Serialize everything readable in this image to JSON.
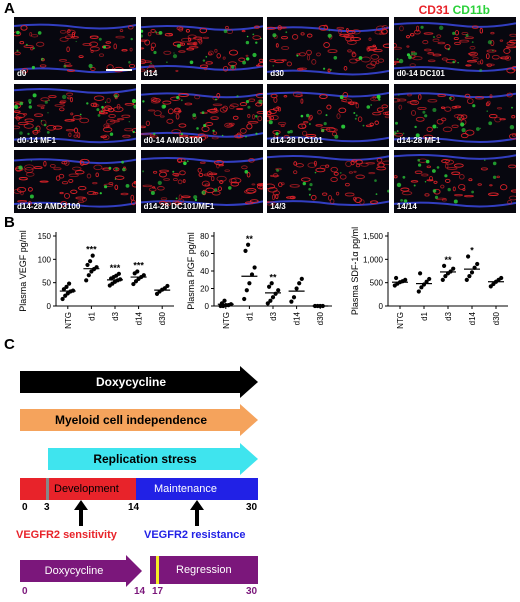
{
  "panel_labels": {
    "a": "A",
    "b": "B",
    "c": "C"
  },
  "legend": {
    "cd31": "CD31",
    "cd11b": "CD11b"
  },
  "panel_a": {
    "tiles": [
      "d0",
      "d14",
      "d30",
      "d0-14 DC101",
      "d0-14 MF1",
      "d0-14 AMD3100",
      "d14-28 DC101",
      "d14-28 MF1",
      "d14-28 AMD3100",
      "d14-28 DC101/MF1",
      "14/3",
      "14/14"
    ],
    "colors": {
      "cd31": "#e8232a",
      "cd11b": "#2bd13a",
      "dapi": "#3a48e0"
    }
  },
  "chart_data": [
    {
      "type": "scatter",
      "ylabel": "Plasma VEGF pg/ml",
      "categories": [
        "NTG",
        "d1",
        "d3",
        "d14",
        "d30"
      ],
      "ylim": [
        0,
        150
      ],
      "yticks": [
        0,
        50,
        100,
        150
      ],
      "means": [
        32,
        80,
        56,
        62,
        34
      ],
      "significance": [
        "",
        "***",
        "***",
        "***",
        ""
      ],
      "points": [
        [
          15,
          22,
          27,
          31,
          33,
          36,
          41,
          48
        ],
        [
          55,
          66,
          74,
          79,
          83,
          88,
          96,
          108
        ],
        [
          44,
          48,
          52,
          55,
          57,
          59,
          62,
          65,
          69
        ],
        [
          47,
          53,
          58,
          62,
          66,
          70,
          74
        ],
        [
          26,
          31,
          35,
          38,
          43
        ]
      ]
    },
    {
      "type": "scatter",
      "ylabel": "Plasma PlGF pg/ml",
      "categories": [
        "NTG",
        "d1",
        "d3",
        "d14",
        "d30"
      ],
      "ylim": [
        0,
        80
      ],
      "yticks": [
        0,
        20,
        40,
        60,
        80
      ],
      "means": [
        2,
        34,
        15,
        17,
        0
      ],
      "significance": [
        "",
        "**",
        "**",
        "",
        ""
      ],
      "points": [
        [
          0,
          0,
          1,
          1,
          2,
          3,
          6
        ],
        [
          8,
          18,
          26,
          36,
          44,
          63,
          70
        ],
        [
          3,
          6,
          10,
          14,
          18,
          22,
          26
        ],
        [
          5,
          10,
          20,
          26,
          31
        ],
        [
          0,
          0,
          0,
          0
        ]
      ]
    },
    {
      "type": "scatter",
      "ylabel": "Plasma SDF-1α pg/ml",
      "categories": [
        "NTG",
        "d1",
        "d3",
        "d14",
        "d30"
      ],
      "ylim": [
        0,
        1500
      ],
      "yticks": [
        0,
        500,
        1000,
        1500
      ],
      "ytick_labels": [
        "0",
        "500",
        "1,000",
        "1,500"
      ],
      "means": [
        510,
        480,
        730,
        790,
        520
      ],
      "significance": [
        "",
        "",
        "**",
        "*",
        ""
      ],
      "points": [
        [
          440,
          480,
          510,
          530,
          560,
          600
        ],
        [
          310,
          400,
          460,
          520,
          580,
          700
        ],
        [
          560,
          640,
          700,
          740,
          800,
          860
        ],
        [
          560,
          640,
          720,
          820,
          900,
          1060
        ],
        [
          420,
          470,
          520,
          560,
          600
        ]
      ]
    }
  ],
  "panel_c": {
    "arrows": [
      {
        "label": "Doxycycline",
        "fill": "#000000",
        "text_color": "#ffffff"
      },
      {
        "label": "Myeloid cell independence",
        "fill": "#f5a35c",
        "text_color": "#000000"
      },
      {
        "label": "Replication stress",
        "fill": "#3fe4ee",
        "text_color": "#000000"
      }
    ],
    "development": {
      "label": "Development",
      "color": "#e8232a"
    },
    "maintenance": {
      "label": "Maintenance",
      "color": "#2121e6"
    },
    "timeline_ticks": [
      "0",
      "3",
      "14",
      "30"
    ],
    "sensitivity": {
      "label": "VEGFR2 sensitivity",
      "color": "#e8232a"
    },
    "resistance": {
      "label": "VEGFR2 resistance",
      "color": "#2121e6"
    },
    "bottom": {
      "doxycycline_label": "Doxycycline",
      "regression_label": "Regression",
      "color": "#7b177b",
      "marker_color": "#f5ec27",
      "ticks": [
        "0",
        "14",
        "17",
        "30"
      ]
    }
  }
}
